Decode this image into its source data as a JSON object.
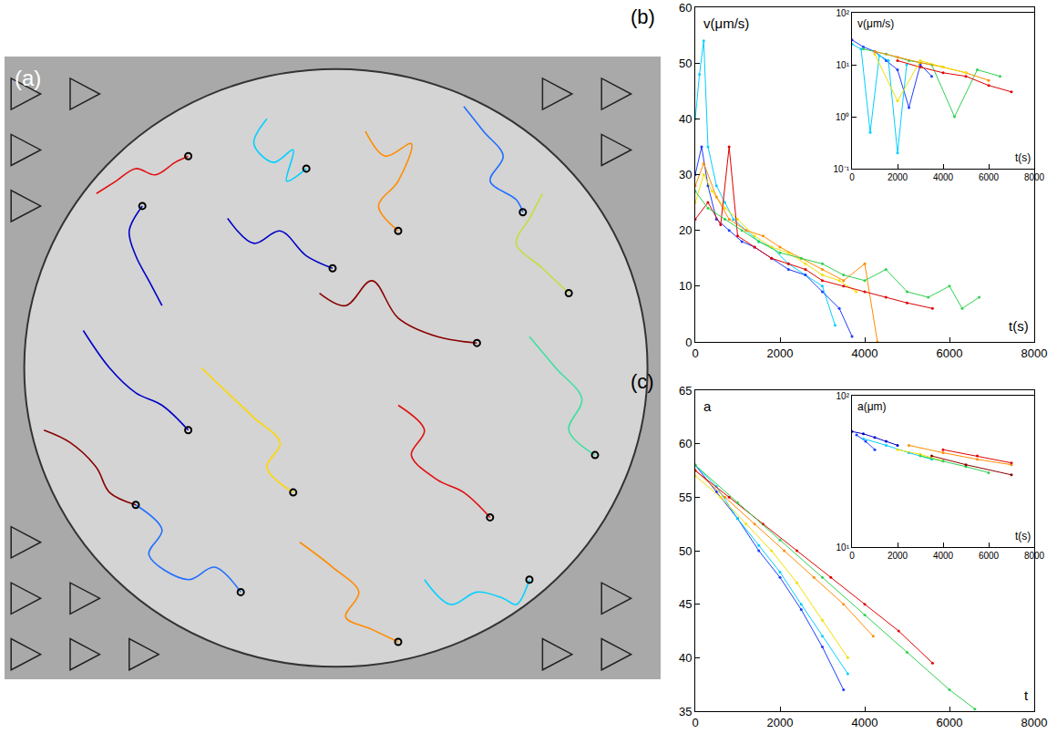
{
  "chart_data": [
    {
      "type": "line",
      "title": "(a)",
      "tick_labels": false,
      "grid": false,
      "marker": "circle",
      "xlim": [
        0,
        100
      ],
      "ylim": [
        0,
        100
      ],
      "series": [
        {
          "color": "#0000c8",
          "x": [
            24,
            22,
            20,
            19,
            21
          ],
          "values": [
            60,
            64,
            68,
            72,
            76
          ]
        },
        {
          "color": "#e01010",
          "x": [
            14,
            17,
            20,
            23,
            26,
            28
          ],
          "values": [
            78,
            80,
            82,
            81,
            83,
            84
          ]
        },
        {
          "color": "#00d0ff",
          "x": [
            40,
            38,
            41,
            44,
            43,
            46
          ],
          "values": [
            90,
            86,
            83,
            85,
            80,
            82
          ]
        },
        {
          "color": "#ff8c00",
          "x": [
            55,
            58,
            62,
            60,
            57,
            60
          ],
          "values": [
            88,
            84,
            86,
            80,
            76,
            72
          ]
        },
        {
          "color": "#1f6fff",
          "x": [
            70,
            73,
            76,
            74,
            78,
            79
          ],
          "values": [
            92,
            88,
            84,
            80,
            77,
            75
          ]
        },
        {
          "color": "#c0e040",
          "x": [
            82,
            80,
            78,
            82,
            86
          ],
          "values": [
            78,
            74,
            70,
            66,
            62
          ]
        },
        {
          "color": "#8b0000",
          "x": [
            48,
            52,
            56,
            60,
            66,
            72
          ],
          "values": [
            62,
            60,
            64,
            58,
            55,
            54
          ]
        },
        {
          "color": "#0000c8",
          "x": [
            12,
            16,
            20,
            24,
            28
          ],
          "values": [
            56,
            50,
            46,
            44,
            40
          ]
        },
        {
          "color": "#ffd700",
          "x": [
            30,
            34,
            38,
            42,
            40,
            44
          ],
          "values": [
            50,
            46,
            42,
            38,
            34,
            30
          ]
        },
        {
          "color": "#e01010",
          "x": [
            60,
            64,
            62,
            66,
            70,
            74
          ],
          "values": [
            44,
            40,
            36,
            32,
            30,
            26
          ]
        },
        {
          "color": "#40e0a0",
          "x": [
            80,
            84,
            88,
            86,
            90
          ],
          "values": [
            55,
            50,
            45,
            40,
            36
          ]
        },
        {
          "color": "#1f6fff",
          "x": [
            20,
            24,
            22,
            28,
            32,
            36
          ],
          "values": [
            28,
            24,
            20,
            16,
            18,
            14
          ]
        },
        {
          "color": "#ff8c00",
          "x": [
            45,
            50,
            54,
            52,
            56,
            60
          ],
          "values": [
            22,
            18,
            14,
            10,
            8,
            6
          ]
        },
        {
          "color": "#00d0ff",
          "x": [
            64,
            68,
            72,
            76,
            78,
            80
          ],
          "values": [
            16,
            12,
            14,
            13,
            12,
            16
          ]
        },
        {
          "color": "#8b0000",
          "x": [
            6,
            10,
            14,
            16,
            20
          ],
          "values": [
            40,
            38,
            34,
            30,
            28
          ]
        },
        {
          "color": "#0000c8",
          "x": [
            34,
            38,
            42,
            46,
            50
          ],
          "values": [
            74,
            70,
            72,
            68,
            66
          ]
        }
      ]
    },
    {
      "type": "scatter",
      "title": "(b)",
      "xlabel": "t(s)",
      "ylabel": "v(μm/s)",
      "grid": false,
      "xlim": [
        0,
        8000
      ],
      "ylim": [
        0,
        60
      ],
      "xticks": [
        0,
        2000,
        4000,
        6000,
        8000
      ],
      "yticks": [
        0,
        10,
        20,
        30,
        40,
        50,
        60
      ],
      "series": [
        {
          "color": "#00d0ff",
          "x": [
            0,
            100,
            200,
            300,
            500,
            700,
            900,
            1200,
            1500,
            1800,
            2200,
            2600,
            3000,
            3300
          ],
          "values": [
            40,
            48,
            54,
            35,
            28,
            25,
            22,
            20,
            18,
            17,
            14,
            12,
            10,
            3
          ]
        },
        {
          "color": "#1f3cff",
          "x": [
            0,
            150,
            300,
            500,
            800,
            1100,
            1400,
            1800,
            2200,
            2600,
            3000,
            3400,
            3700
          ],
          "values": [
            30,
            35,
            28,
            22,
            20,
            18,
            17,
            15,
            13,
            12,
            9,
            6,
            1
          ]
        },
        {
          "color": "#f0e000",
          "x": [
            0,
            200,
            400,
            700,
            1000,
            1400,
            1800,
            2200,
            2600,
            3000,
            3400,
            3800
          ],
          "values": [
            25,
            30,
            27,
            24,
            22,
            19,
            17,
            16,
            14,
            12,
            11,
            9
          ]
        },
        {
          "color": "#ff8c00",
          "x": [
            0,
            200,
            500,
            800,
            1200,
            1600,
            2000,
            2500,
            3000,
            3500,
            4000,
            4300
          ],
          "values": [
            28,
            32,
            26,
            22,
            20,
            19,
            17,
            15,
            13,
            11,
            14,
            0
          ]
        },
        {
          "color": "#e00000",
          "x": [
            0,
            300,
            600,
            800,
            1000,
            1400,
            1800,
            2200,
            2600,
            3000,
            3500,
            4000,
            4500,
            5000,
            5600
          ],
          "values": [
            22,
            25,
            21,
            35,
            19,
            17,
            15,
            14,
            13,
            11,
            10,
            9,
            8,
            7,
            6
          ]
        },
        {
          "color": "#30d050",
          "x": [
            0,
            300,
            700,
            1100,
            1500,
            2000,
            2500,
            3000,
            3500,
            4000,
            4500,
            5000,
            5500,
            6000,
            6300,
            6700
          ],
          "values": [
            27,
            24,
            22,
            20,
            18,
            16,
            15,
            14,
            12,
            11,
            13,
            9,
            8,
            10,
            6,
            8
          ]
        }
      ]
    },
    {
      "type": "scatter",
      "xlabel": "t(s)",
      "ylabel": "v(μm/s)",
      "grid": false,
      "log": "y",
      "xlim": [
        0,
        8000
      ],
      "ylim": [
        0.1,
        100
      ],
      "xticks": [
        0,
        2000,
        4000,
        6000,
        8000
      ],
      "yticks": [
        {
          "value": 0.1,
          "label": "10⁻¹"
        },
        {
          "value": 1,
          "label": "10⁰"
        },
        {
          "value": 10,
          "label": "10¹"
        },
        {
          "value": 100,
          "label": "10²"
        }
      ],
      "series": [
        {
          "color": "#1f3cff",
          "x": [
            0,
            500,
            1000,
            1500,
            2000,
            2500,
            3000,
            3500
          ],
          "values": [
            30,
            22,
            18,
            12,
            8,
            1.5,
            10,
            6
          ]
        },
        {
          "color": "#00d0ff",
          "x": [
            0,
            400,
            800,
            1200,
            1600,
            2000,
            2400
          ],
          "values": [
            25,
            20,
            0.5,
            15,
            12,
            0.2,
            10
          ]
        },
        {
          "color": "#30d050",
          "x": [
            500,
            1500,
            2500,
            3500,
            4500,
            5500,
            6500
          ],
          "values": [
            20,
            16,
            12,
            10,
            1,
            8,
            6
          ]
        },
        {
          "color": "#ff8c00",
          "x": [
            1000,
            2000,
            3000,
            4000,
            5000,
            6000
          ],
          "values": [
            18,
            14,
            11,
            9,
            7,
            5
          ]
        },
        {
          "color": "#e00000",
          "x": [
            2000,
            3000,
            4000,
            5000,
            6000,
            7000
          ],
          "values": [
            12,
            9,
            7,
            6,
            4,
            3
          ]
        },
        {
          "color": "#f0e000",
          "x": [
            1000,
            2000,
            3000,
            4000,
            5000
          ],
          "values": [
            16,
            2,
            12,
            9,
            7
          ]
        }
      ]
    },
    {
      "type": "scatter",
      "title": "(c)",
      "xlabel": "t",
      "ylabel": "a",
      "grid": false,
      "xlim": [
        0,
        8000
      ],
      "ylim": [
        35,
        65
      ],
      "xticks": [
        0,
        2000,
        4000,
        6000,
        8000
      ],
      "yticks": [
        35,
        40,
        45,
        50,
        55,
        60,
        65
      ],
      "series": [
        {
          "color": "#1f3cff",
          "x": [
            0,
            500,
            1000,
            1500,
            2000,
            2500,
            3000,
            3500
          ],
          "values": [
            58,
            55.5,
            53,
            50,
            47.5,
            44.5,
            41,
            37
          ]
        },
        {
          "color": "#00d0ff",
          "x": [
            0,
            500,
            1000,
            1500,
            2000,
            2500,
            3000,
            3600
          ],
          "values": [
            58,
            56,
            53,
            50.5,
            48,
            45,
            42,
            38.5
          ]
        },
        {
          "color": "#f0e000",
          "x": [
            0,
            600,
            1200,
            1800,
            2400,
            3000,
            3600
          ],
          "values": [
            57,
            55,
            52.5,
            50,
            47,
            43.5,
            40
          ]
        },
        {
          "color": "#ff8c00",
          "x": [
            0,
            700,
            1400,
            2100,
            2800,
            3500,
            4200
          ],
          "values": [
            57.5,
            55,
            52.5,
            50,
            47.5,
            45,
            42
          ]
        },
        {
          "color": "#e00000",
          "x": [
            0,
            800,
            1600,
            2400,
            3200,
            4000,
            4800,
            5600
          ],
          "values": [
            57.5,
            55,
            52.5,
            50,
            47.5,
            45,
            42.5,
            39.5
          ]
        },
        {
          "color": "#30d050",
          "x": [
            0,
            1000,
            2000,
            3000,
            4000,
            5000,
            6000,
            6600
          ],
          "values": [
            58,
            54.5,
            51,
            47.5,
            44,
            40.5,
            37,
            35.2
          ]
        }
      ]
    },
    {
      "type": "scatter",
      "xlabel": "t(s)",
      "ylabel": "a(μm)",
      "grid": false,
      "log": "y",
      "xlim": [
        0,
        8000
      ],
      "ylim": [
        10,
        100
      ],
      "xticks": [
        0,
        2000,
        4000,
        6000,
        8000
      ],
      "yticks": [
        {
          "value": 10,
          "label": "10¹"
        },
        {
          "value": 100,
          "label": "10²"
        }
      ],
      "series": [
        {
          "color": "#0000c8",
          "x": [
            0,
            500,
            1000,
            1500,
            2000
          ],
          "values": [
            58,
            56,
            53,
            50,
            47
          ]
        },
        {
          "color": "#1f3cff",
          "x": [
            200,
            600,
            1000
          ],
          "values": [
            55,
            50,
            44
          ]
        },
        {
          "color": "#00d0ff",
          "x": [
            500,
            1500,
            2500,
            3500
          ],
          "values": [
            52,
            47,
            42,
            38
          ]
        },
        {
          "color": "#f0e000",
          "x": [
            2000,
            3000,
            4000
          ],
          "values": [
            44,
            41,
            37
          ]
        },
        {
          "color": "#30d050",
          "x": [
            3000,
            4000,
            5000,
            6000
          ],
          "values": [
            40,
            37,
            34,
            31
          ]
        },
        {
          "color": "#ff8c00",
          "x": [
            2500,
            4000,
            5500,
            7000
          ],
          "values": [
            47,
            42,
            38,
            35
          ]
        },
        {
          "color": "#e00000",
          "x": [
            4000,
            5500,
            7000
          ],
          "values": [
            44,
            40,
            36
          ]
        },
        {
          "color": "#8b0000",
          "x": [
            3500,
            5000,
            7000
          ],
          "values": [
            40,
            35,
            30
          ]
        }
      ]
    }
  ]
}
